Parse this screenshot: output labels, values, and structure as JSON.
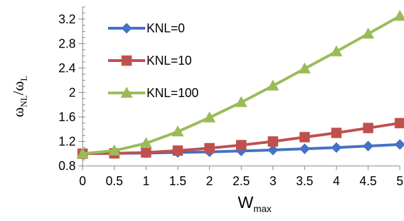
{
  "chart_data": {
    "type": "line",
    "title": "",
    "xlabel": {
      "base": "W",
      "sub": "max"
    },
    "ylabel": {
      "base1": "ω",
      "sub1": "NL",
      "sep": "/",
      "base2": "ω",
      "sub2": "L"
    },
    "x": [
      0,
      0.5,
      1,
      1.5,
      2,
      2.5,
      3,
      3.5,
      4,
      4.5,
      5
    ],
    "x_tick_labels": [
      "0",
      "0.5",
      "1",
      "1.5",
      "2",
      "2.5",
      "3",
      "3.5",
      "4",
      "4.5",
      "5"
    ],
    "xlim": [
      0,
      5
    ],
    "y_ticks": [
      0.8,
      1.2,
      1.6,
      2.0,
      2.4,
      2.8,
      3.2
    ],
    "y_tick_labels": [
      "0.8",
      "1.2",
      "1.6",
      "2",
      "2.4",
      "2.8",
      "3.2"
    ],
    "ylim": [
      0.8,
      3.4
    ],
    "grid": false,
    "legend_position": "top-left",
    "series": [
      {
        "name": "KNL=0",
        "color": "#4472C4",
        "marker": "diamond",
        "values": [
          1.0,
          1.005,
          1.01,
          1.02,
          1.03,
          1.045,
          1.06,
          1.08,
          1.1,
          1.125,
          1.15
        ]
      },
      {
        "name": "KNL=10",
        "color": "#C0504D",
        "marker": "square",
        "values": [
          1.0,
          1.005,
          1.02,
          1.05,
          1.09,
          1.14,
          1.2,
          1.27,
          1.34,
          1.42,
          1.5
        ]
      },
      {
        "name": "KNL=100",
        "color": "#9BBB59",
        "marker": "triangle",
        "values": [
          1.0,
          1.05,
          1.17,
          1.36,
          1.59,
          1.84,
          2.11,
          2.39,
          2.67,
          2.96,
          3.25
        ]
      }
    ]
  }
}
